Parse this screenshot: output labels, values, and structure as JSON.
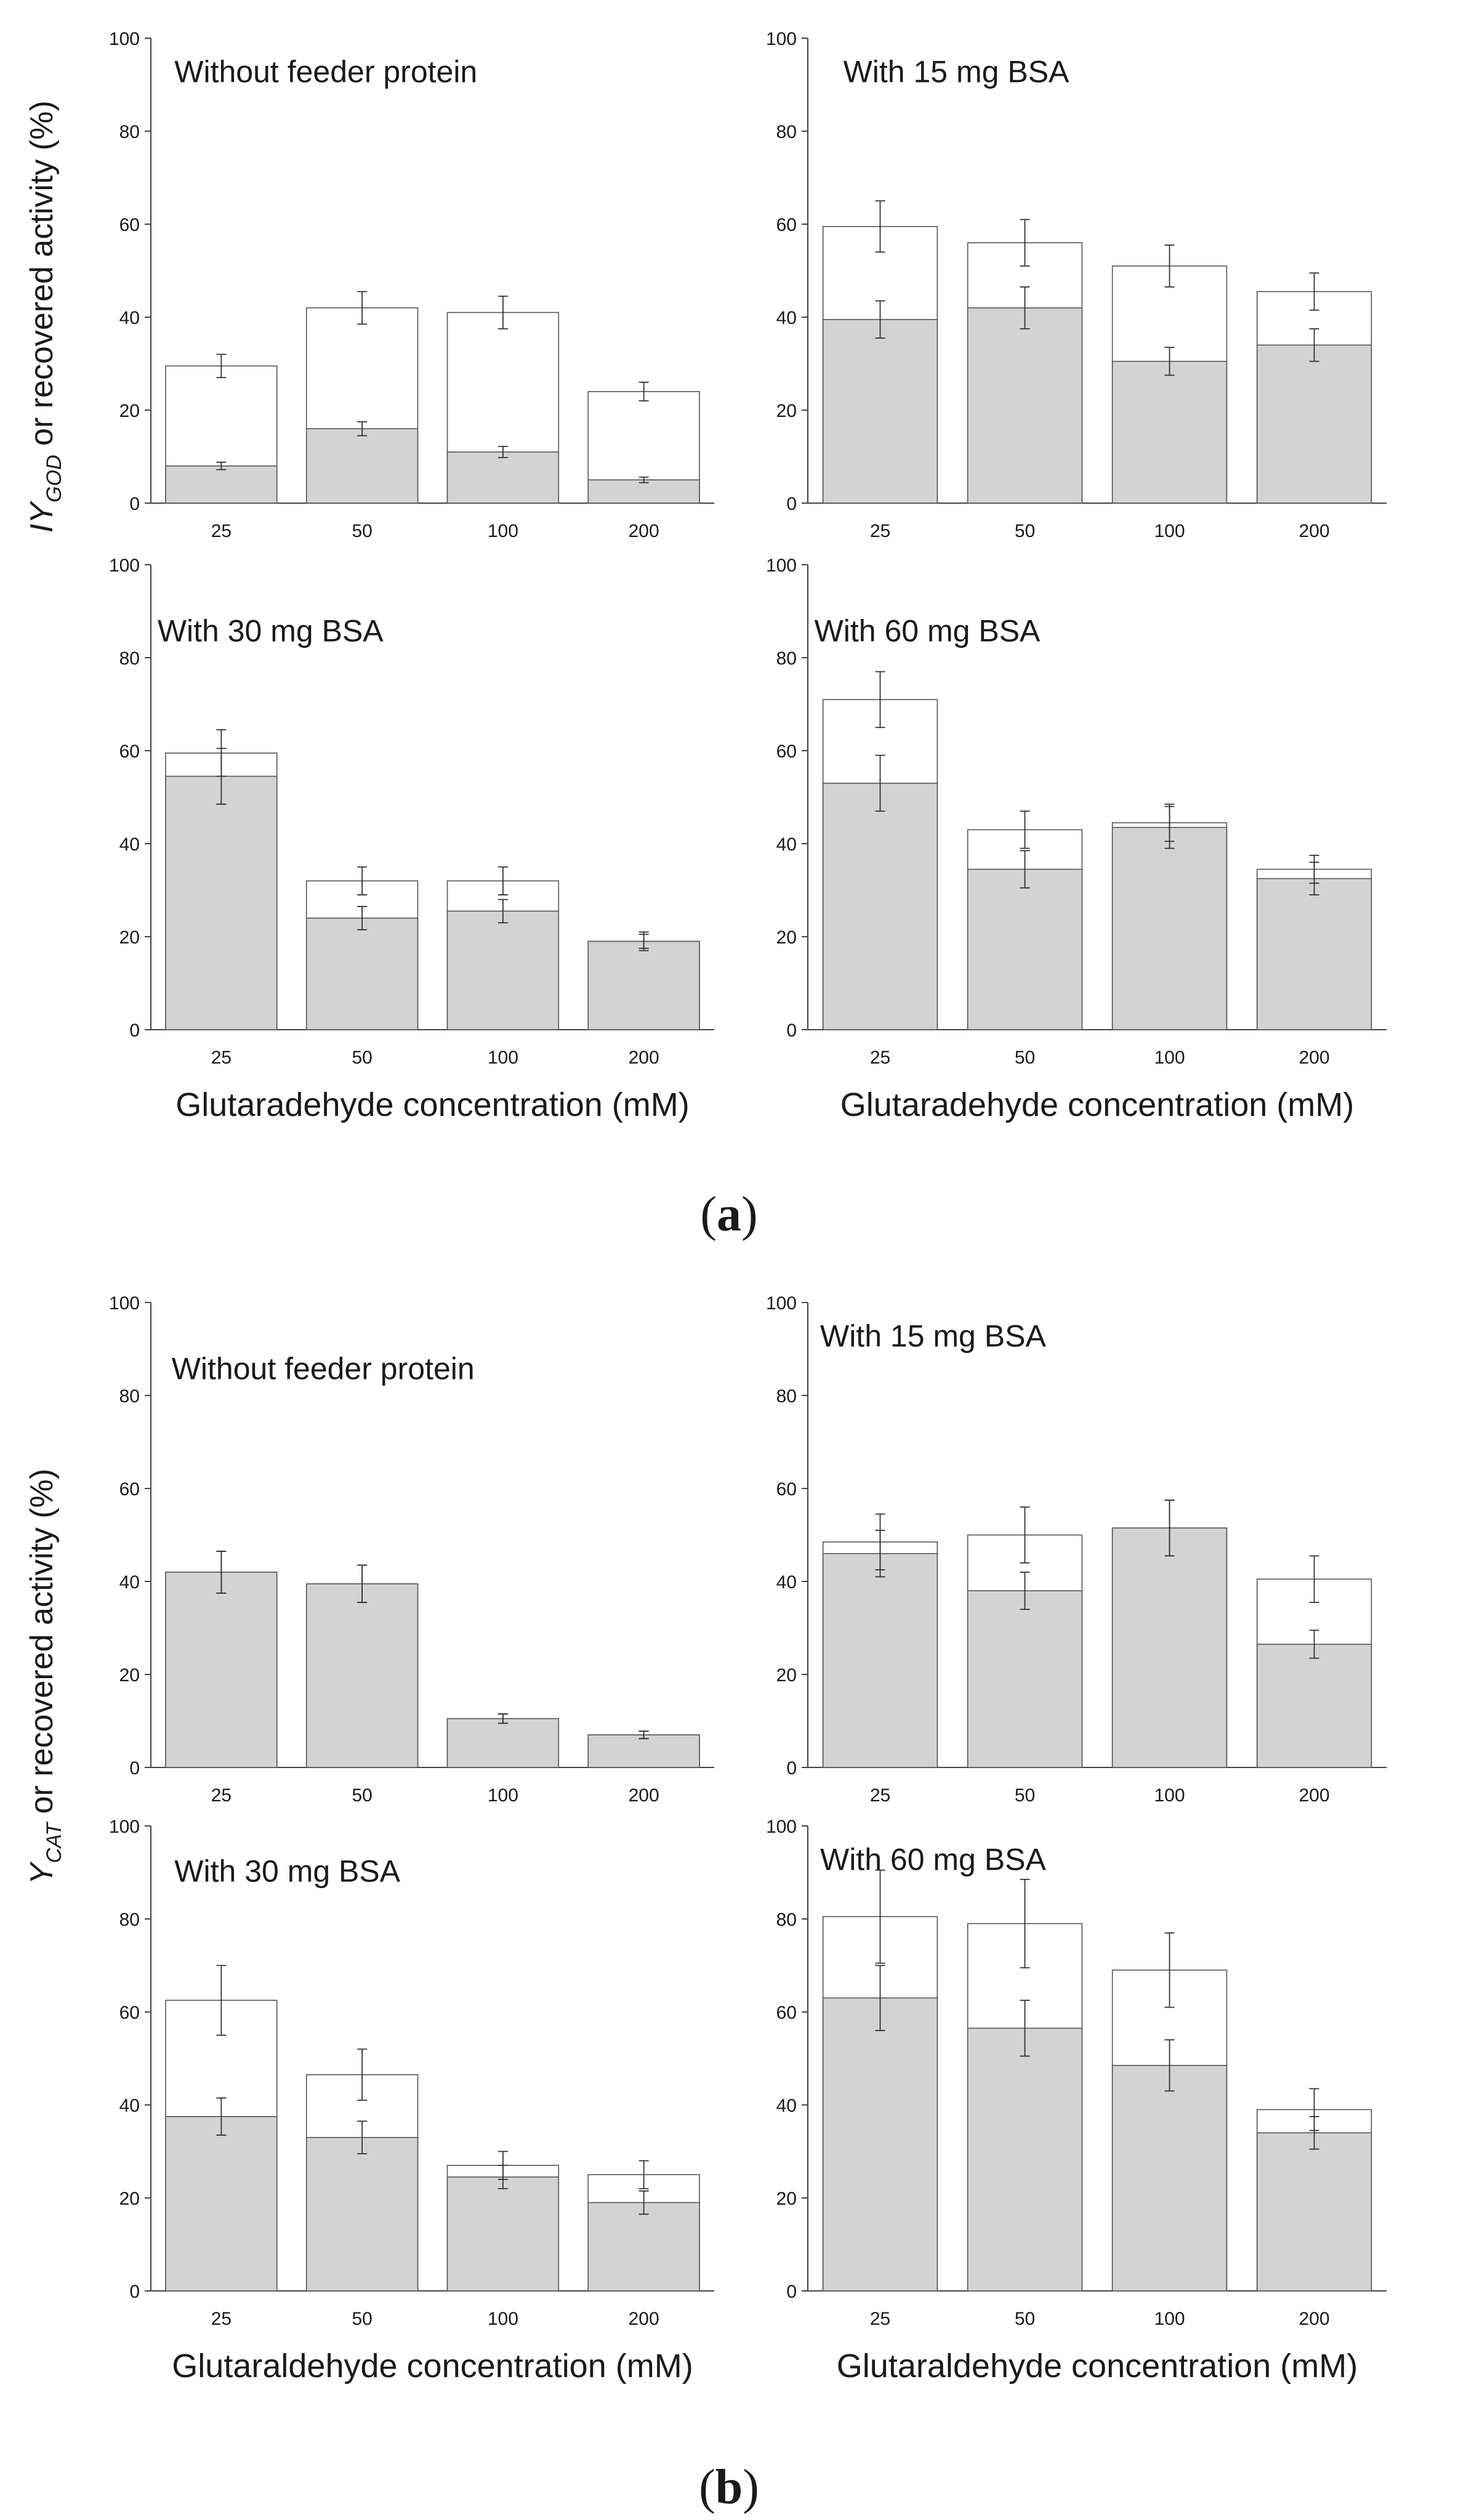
{
  "chart_data": [
    {
      "type": "bar",
      "stacking": "overlay",
      "group": "a",
      "position": "top-left",
      "title": "Without feeder protein",
      "ylabel": "IY_GOD or recovered activity (%)",
      "xlabel": "",
      "categories": [
        "25",
        "50",
        "100",
        "200"
      ],
      "ylim": [
        0,
        100
      ],
      "yticks": [
        "0",
        "20",
        "40",
        "60",
        "80",
        "100"
      ],
      "series": [
        {
          "name": "IY_GOD",
          "fill": "#ffffff",
          "values": [
            29.5,
            42.0,
            41.0,
            24.0
          ],
          "errors": [
            2.5,
            3.5,
            3.5,
            2.0
          ]
        },
        {
          "name": "Recovered activity",
          "fill": "#d3d3d3",
          "values": [
            8.0,
            16.0,
            11.0,
            5.0
          ],
          "errors": [
            0.8,
            1.5,
            1.2,
            0.6
          ]
        }
      ]
    },
    {
      "type": "bar",
      "stacking": "overlay",
      "group": "a",
      "position": "top-right",
      "title": "With 15 mg BSA",
      "ylabel": "",
      "xlabel": "",
      "categories": [
        "25",
        "50",
        "100",
        "200"
      ],
      "ylim": [
        0,
        100
      ],
      "yticks": [
        "0",
        "20",
        "40",
        "60",
        "80",
        "100"
      ],
      "series": [
        {
          "name": "IY_GOD",
          "fill": "#ffffff",
          "values": [
            59.5,
            56.0,
            51.0,
            45.5
          ],
          "errors": [
            5.5,
            5.0,
            4.5,
            4.0
          ]
        },
        {
          "name": "Recovered activity",
          "fill": "#d3d3d3",
          "values": [
            39.5,
            42.0,
            30.5,
            34.0
          ],
          "errors": [
            4.0,
            4.5,
            3.0,
            3.5
          ]
        }
      ]
    },
    {
      "type": "bar",
      "stacking": "overlay",
      "group": "a",
      "position": "bottom-left",
      "title": "With 30 mg BSA",
      "ylabel": "IY_GOD or recovered activity (%)",
      "xlabel": "Glutaradehyde concentration (mM)",
      "categories": [
        "25",
        "50",
        "100",
        "200"
      ],
      "ylim": [
        0,
        100
      ],
      "yticks": [
        "0",
        "20",
        "40",
        "60",
        "80",
        "100"
      ],
      "series": [
        {
          "name": "IY_GOD",
          "fill": "#ffffff",
          "values": [
            59.5,
            32.0,
            32.0,
            19.0
          ],
          "errors": [
            5.0,
            3.0,
            3.0,
            2.0
          ]
        },
        {
          "name": "Recovered activity",
          "fill": "#d3d3d3",
          "values": [
            54.5,
            24.0,
            25.5,
            19.0
          ],
          "errors": [
            6.0,
            2.5,
            2.5,
            1.5
          ]
        }
      ]
    },
    {
      "type": "bar",
      "stacking": "overlay",
      "group": "a",
      "position": "bottom-right",
      "title": "With 60 mg BSA",
      "ylabel": "",
      "xlabel": "Glutaradehyde concentration (mM)",
      "categories": [
        "25",
        "50",
        "100",
        "200"
      ],
      "ylim": [
        0,
        100
      ],
      "yticks": [
        "0",
        "20",
        "40",
        "60",
        "80",
        "100"
      ],
      "series": [
        {
          "name": "IY_GOD",
          "fill": "#ffffff",
          "values": [
            71.0,
            43.0,
            44.5,
            34.5
          ],
          "errors": [
            6.0,
            4.0,
            4.0,
            3.0
          ]
        },
        {
          "name": "Recovered activity",
          "fill": "#d3d3d3",
          "values": [
            53.0,
            34.5,
            43.5,
            32.5
          ],
          "errors": [
            6.0,
            4.0,
            4.5,
            3.5
          ]
        }
      ]
    },
    {
      "type": "bar",
      "stacking": "overlay",
      "group": "b",
      "position": "top-left",
      "title": "Without feeder protein",
      "ylabel": "Y_CAT or recovered activity (%)",
      "xlabel": "",
      "categories": [
        "25",
        "50",
        "100",
        "200"
      ],
      "ylim": [
        0,
        100
      ],
      "yticks": [
        "0",
        "20",
        "40",
        "60",
        "80",
        "100"
      ],
      "series": [
        {
          "name": "Y_CAT",
          "fill": "#ffffff",
          "values": [
            42.0,
            39.5,
            10.5,
            7.0
          ],
          "errors": [
            4.5,
            4.0,
            1.0,
            0.8
          ]
        },
        {
          "name": "Recovered activity",
          "fill": "#d3d3d3",
          "values": [
            42.0,
            39.5,
            10.5,
            7.0
          ],
          "errors": [
            4.5,
            4.0,
            1.0,
            0.8
          ]
        }
      ]
    },
    {
      "type": "bar",
      "stacking": "overlay",
      "group": "b",
      "position": "top-right",
      "title": "With 15 mg BSA",
      "ylabel": "",
      "xlabel": "",
      "categories": [
        "25",
        "50",
        "100",
        "200"
      ],
      "ylim": [
        0,
        100
      ],
      "yticks": [
        "0",
        "20",
        "40",
        "60",
        "80",
        "100"
      ],
      "series": [
        {
          "name": "Y_CAT",
          "fill": "#ffffff",
          "values": [
            48.5,
            50.0,
            51.5,
            40.5
          ],
          "errors": [
            6.0,
            6.0,
            6.0,
            5.0
          ]
        },
        {
          "name": "Recovered activity",
          "fill": "#d3d3d3",
          "values": [
            46.0,
            38.0,
            51.5,
            26.5
          ],
          "errors": [
            5.0,
            4.0,
            6.0,
            3.0
          ]
        }
      ]
    },
    {
      "type": "bar",
      "stacking": "overlay",
      "group": "b",
      "position": "bottom-left",
      "title": "With 30 mg BSA",
      "ylabel": "Y_CAT or recovered activity (%)",
      "xlabel": "Glutaraldehyde concentration (mM)",
      "categories": [
        "25",
        "50",
        "100",
        "200"
      ],
      "ylim": [
        0,
        100
      ],
      "yticks": [
        "0",
        "20",
        "40",
        "60",
        "80",
        "100"
      ],
      "series": [
        {
          "name": "Y_CAT",
          "fill": "#ffffff",
          "values": [
            62.5,
            46.5,
            27.0,
            25.0
          ],
          "errors": [
            7.5,
            5.5,
            3.0,
            3.0
          ]
        },
        {
          "name": "Recovered activity",
          "fill": "#d3d3d3",
          "values": [
            37.5,
            33.0,
            24.5,
            19.0
          ],
          "errors": [
            4.0,
            3.5,
            2.5,
            2.5
          ]
        }
      ]
    },
    {
      "type": "bar",
      "stacking": "overlay",
      "group": "b",
      "position": "bottom-right",
      "title": "With 60 mg BSA",
      "ylabel": "",
      "xlabel": "Glutaraldehyde concentration (mM)",
      "categories": [
        "25",
        "50",
        "100",
        "200"
      ],
      "ylim": [
        0,
        100
      ],
      "yticks": [
        "0",
        "20",
        "40",
        "60",
        "80",
        "100"
      ],
      "series": [
        {
          "name": "Y_CAT",
          "fill": "#ffffff",
          "values": [
            80.5,
            79.0,
            69.0,
            39.0
          ],
          "errors": [
            10.0,
            9.5,
            8.0,
            4.5
          ]
        },
        {
          "name": "Recovered activity",
          "fill": "#d3d3d3",
          "values": [
            63.0,
            56.5,
            48.5,
            34.0
          ],
          "errors": [
            7.0,
            6.0,
            5.5,
            3.5
          ]
        }
      ]
    }
  ],
  "figure_labels": {
    "a": {
      "open": "(",
      "letter": "a",
      "close": ")"
    },
    "b": {
      "open": "(",
      "letter": "b",
      "close": ")"
    }
  }
}
